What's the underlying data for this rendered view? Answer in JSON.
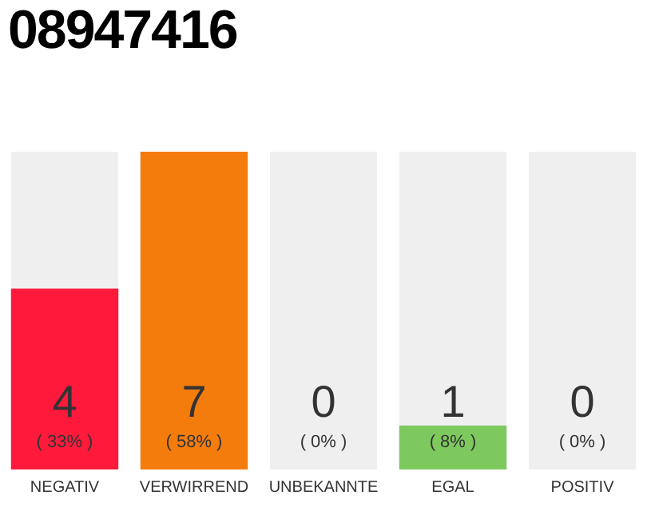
{
  "chart_data": {
    "type": "bar",
    "title": "08947416",
    "categories": [
      "NEGATIV",
      "VERWIRREND",
      "UNBEKANNTE",
      "EGAL",
      "POSITIV"
    ],
    "values": [
      33,
      58,
      0,
      8,
      0
    ],
    "colors": [
      "#ff1a3c",
      "#f47c0c",
      "#eeeeee",
      "#7dc95e",
      "#eeeeee"
    ],
    "value_labels": [
      "( 33% )",
      "( 58% )",
      "( 0% )",
      "( 8% )",
      "( 0% )"
    ],
    "annotations": [
      "4",
      "7",
      "0",
      "1",
      "0"
    ],
    "grid": false,
    "legend": false
  }
}
